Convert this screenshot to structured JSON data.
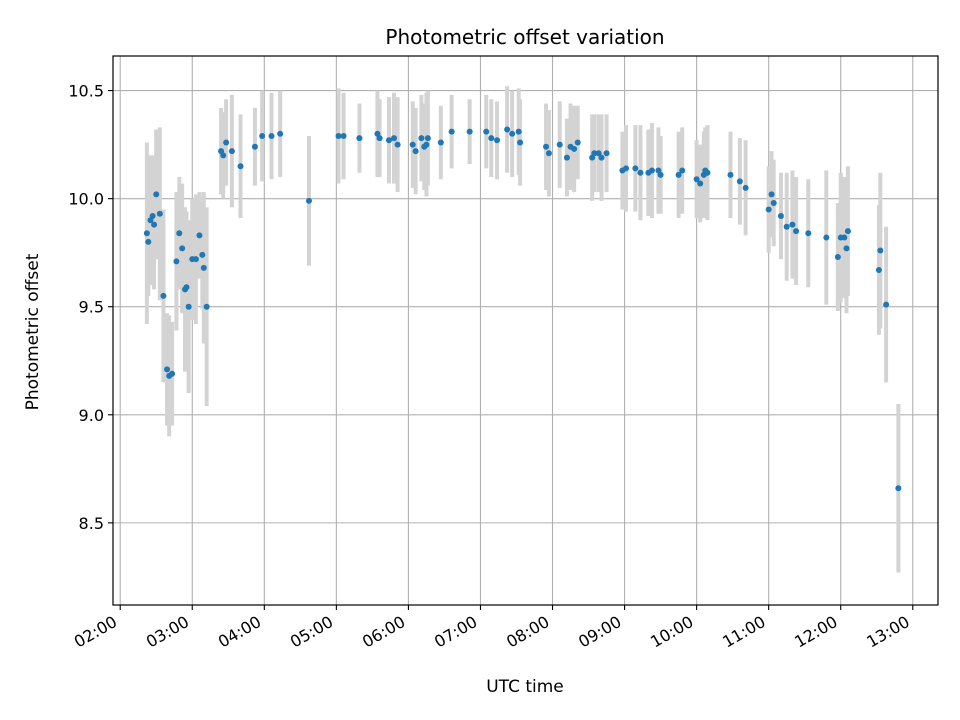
{
  "chart_data": {
    "type": "scatter",
    "title": "Photometric offset variation",
    "xlabel": "UTC time",
    "ylabel": "Photometric offset",
    "xlim": [
      1.9,
      13.35
    ],
    "ylim": [
      8.12,
      10.66
    ],
    "grid": true,
    "x_unit": "hours UTC",
    "x_ticks": [
      2,
      3,
      4,
      5,
      6,
      7,
      8,
      9,
      10,
      11,
      12,
      13
    ],
    "x_tick_labels": [
      "02:00",
      "03:00",
      "04:00",
      "05:00",
      "06:00",
      "07:00",
      "08:00",
      "09:00",
      "10:00",
      "11:00",
      "12:00",
      "13:00"
    ],
    "y_ticks": [
      8.5,
      9.0,
      9.5,
      10.0,
      10.5
    ],
    "y_tick_labels": [
      "8.5",
      "9.0",
      "9.5",
      "10.0",
      "10.5"
    ],
    "colors": {
      "point": "#1f77b4",
      "errorbar": "#d3d3d3",
      "grid": "#b0b0b0",
      "axes": "#000000"
    },
    "series": [
      {
        "name": "offset",
        "points": [
          [
            2.37,
            9.84,
            0.42
          ],
          [
            2.39,
            9.8,
            0.25
          ],
          [
            2.42,
            9.9,
            0.3
          ],
          [
            2.45,
            9.92,
            0.28
          ],
          [
            2.47,
            9.88,
            0.3
          ],
          [
            2.5,
            10.02,
            0.3
          ],
          [
            2.55,
            9.93,
            0.4
          ],
          [
            2.6,
            9.55,
            0.4
          ],
          [
            2.65,
            9.21,
            0.26
          ],
          [
            2.68,
            9.18,
            0.28
          ],
          [
            2.72,
            9.19,
            0.24
          ],
          [
            2.78,
            9.71,
            0.32
          ],
          [
            2.82,
            9.84,
            0.26
          ],
          [
            2.86,
            9.77,
            0.3
          ],
          [
            2.9,
            9.58,
            0.38
          ],
          [
            2.92,
            9.59,
            0.35
          ],
          [
            2.95,
            9.5,
            0.4
          ],
          [
            3.0,
            9.72,
            0.28
          ],
          [
            3.05,
            9.72,
            0.3
          ],
          [
            3.1,
            9.83,
            0.2
          ],
          [
            3.14,
            9.74,
            0.25
          ],
          [
            3.16,
            9.68,
            0.35
          ],
          [
            3.2,
            9.5,
            0.46
          ],
          [
            3.4,
            10.22,
            0.2
          ],
          [
            3.43,
            10.2,
            0.2
          ],
          [
            3.47,
            10.26,
            0.2
          ],
          [
            3.55,
            10.22,
            0.26
          ],
          [
            3.67,
            10.15,
            0.24
          ],
          [
            3.87,
            10.24,
            0.18
          ],
          [
            3.97,
            10.29,
            0.21
          ],
          [
            4.1,
            10.29,
            0.2
          ],
          [
            4.22,
            10.3,
            0.2
          ],
          [
            4.62,
            9.99,
            0.3
          ],
          [
            5.03,
            10.29,
            0.22
          ],
          [
            5.1,
            10.29,
            0.2
          ],
          [
            5.32,
            10.28,
            0.16
          ],
          [
            5.57,
            10.3,
            0.2
          ],
          [
            5.6,
            10.28,
            0.18
          ],
          [
            5.73,
            10.27,
            0.2
          ],
          [
            5.8,
            10.28,
            0.21
          ],
          [
            5.85,
            10.25,
            0.22
          ],
          [
            6.06,
            10.25,
            0.2
          ],
          [
            6.1,
            10.22,
            0.2
          ],
          [
            6.18,
            10.28,
            0.2
          ],
          [
            6.22,
            10.24,
            0.2
          ],
          [
            6.25,
            10.25,
            0.24
          ],
          [
            6.27,
            10.28,
            0.22
          ],
          [
            6.45,
            10.26,
            0.17
          ],
          [
            6.6,
            10.31,
            0.17
          ],
          [
            6.85,
            10.31,
            0.15
          ],
          [
            7.08,
            10.31,
            0.17
          ],
          [
            7.15,
            10.28,
            0.18
          ],
          [
            7.23,
            10.27,
            0.18
          ],
          [
            7.37,
            10.32,
            0.2
          ],
          [
            7.44,
            10.3,
            0.2
          ],
          [
            7.53,
            10.31,
            0.2
          ],
          [
            7.55,
            10.26,
            0.2
          ],
          [
            7.91,
            10.24,
            0.2
          ],
          [
            7.95,
            10.21,
            0.2
          ],
          [
            8.1,
            10.25,
            0.2
          ],
          [
            8.2,
            10.19,
            0.18
          ],
          [
            8.25,
            10.24,
            0.2
          ],
          [
            8.3,
            10.23,
            0.2
          ],
          [
            8.35,
            10.26,
            0.17
          ],
          [
            8.55,
            10.19,
            0.2
          ],
          [
            8.58,
            10.21,
            0.18
          ],
          [
            8.64,
            10.21,
            0.18
          ],
          [
            8.68,
            10.19,
            0.2
          ],
          [
            8.75,
            10.21,
            0.18
          ],
          [
            8.97,
            10.13,
            0.18
          ],
          [
            9.02,
            10.14,
            0.2
          ],
          [
            9.15,
            10.14,
            0.2
          ],
          [
            9.22,
            10.12,
            0.22
          ],
          [
            9.33,
            10.12,
            0.2
          ],
          [
            9.38,
            10.13,
            0.22
          ],
          [
            9.47,
            10.13,
            0.2
          ],
          [
            9.5,
            10.11,
            0.18
          ],
          [
            9.75,
            10.11,
            0.2
          ],
          [
            9.8,
            10.13,
            0.2
          ],
          [
            10.0,
            10.09,
            0.18
          ],
          [
            10.05,
            10.07,
            0.18
          ],
          [
            10.1,
            10.11,
            0.2
          ],
          [
            10.12,
            10.13,
            0.2
          ],
          [
            10.15,
            10.12,
            0.22
          ],
          [
            10.47,
            10.11,
            0.2
          ],
          [
            10.6,
            10.08,
            0.2
          ],
          [
            10.68,
            10.05,
            0.22
          ],
          [
            11.0,
            9.95,
            0.2
          ],
          [
            11.04,
            10.02,
            0.2
          ],
          [
            11.07,
            9.98,
            0.2
          ],
          [
            11.17,
            9.92,
            0.2
          ],
          [
            11.25,
            9.87,
            0.25
          ],
          [
            11.33,
            9.88,
            0.25
          ],
          [
            11.38,
            9.85,
            0.25
          ],
          [
            11.55,
            9.84,
            0.25
          ],
          [
            11.8,
            9.82,
            0.31
          ],
          [
            11.96,
            9.73,
            0.25
          ],
          [
            12.0,
            9.82,
            0.3
          ],
          [
            12.05,
            9.82,
            0.28
          ],
          [
            12.08,
            9.77,
            0.3
          ],
          [
            12.1,
            9.85,
            0.3
          ],
          [
            12.53,
            9.67,
            0.3
          ],
          [
            12.55,
            9.76,
            0.36
          ],
          [
            12.63,
            9.51,
            0.36
          ],
          [
            12.8,
            8.66,
            0.39
          ]
        ]
      }
    ]
  }
}
